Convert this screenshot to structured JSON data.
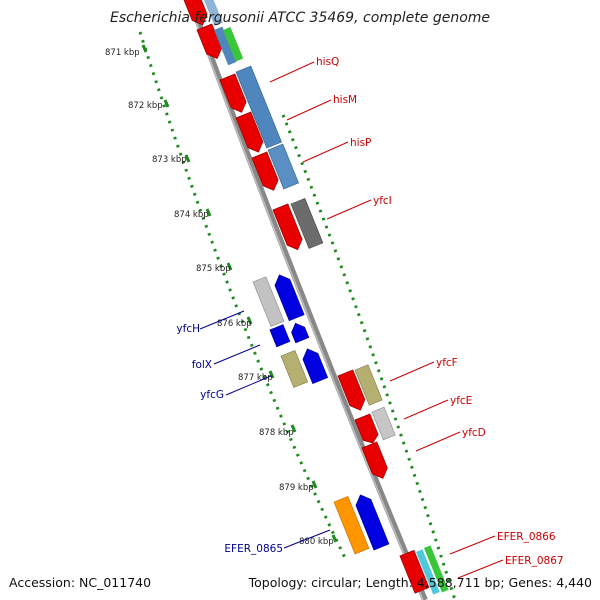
{
  "title": "Escherichia fergusonii ATCC 35469, complete genome",
  "accession_text": "Accession: NC_011740",
  "summary_text": "Topology: circular; Length: 4,588,711 bp; Genes: 4,440",
  "colors": {
    "backbone": "#8a8a8a",
    "tick": "#1f8a1f",
    "forward_label": "#cc0000",
    "reverse_label": "#00008b"
  },
  "kbp_labels": [
    "871 kbp",
    "872 kbp",
    "873 kbp",
    "874 kbp",
    "875 kbp",
    "876 kbp",
    "877 kbp",
    "878 kbp",
    "879 kbp",
    "880 kbp"
  ],
  "forward_genes": [
    {
      "label": "hisQ"
    },
    {
      "label": "hisM"
    },
    {
      "label": "hisP"
    },
    {
      "label": "yfcI"
    },
    {
      "label": "yfcF"
    },
    {
      "label": "yfcE"
    },
    {
      "label": "yfcD"
    },
    {
      "label": "EFER_0866"
    },
    {
      "label": "EFER_0867"
    }
  ],
  "reverse_genes": [
    {
      "label": "yfcH"
    },
    {
      "label": "folX"
    },
    {
      "label": "yfcG"
    },
    {
      "label": "EFER_0865"
    }
  ]
}
